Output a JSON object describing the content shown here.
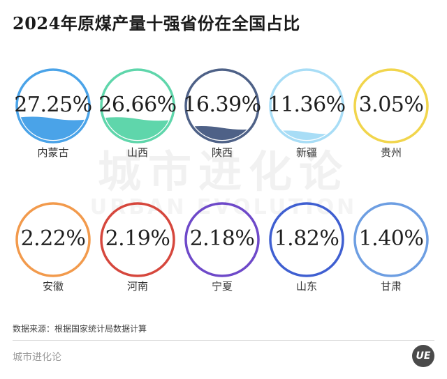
{
  "title": "2024年原煤产量十强省份在全国占比",
  "watermark": {
    "cn": "城市进化论",
    "en": "URBAN EVOLUTION"
  },
  "chart_data": {
    "type": "bubble-gauge",
    "title": "2024年原煤产量十强省份在全国占比",
    "unit": "%",
    "categories": [
      "内蒙古",
      "山西",
      "陕西",
      "新疆",
      "贵州",
      "安徽",
      "河南",
      "宁夏",
      "山东",
      "甘肃"
    ],
    "values": [
      27.25,
      26.66,
      16.39,
      11.36,
      3.05,
      2.22,
      2.19,
      2.18,
      1.82,
      1.4
    ],
    "labels": [
      "27.25%",
      "26.66%",
      "16.39%",
      "11.36%",
      "3.05%",
      "2.22%",
      "2.19%",
      "2.18%",
      "1.82%",
      "1.40%"
    ],
    "colors": [
      "#4aa3e8",
      "#5fd6ab",
      "#4e6187",
      "#a8ddf6",
      "#f1d54c",
      "#f29a4c",
      "#d6473d",
      "#6e49c9",
      "#3f5fd1",
      "#6d9ee2"
    ],
    "layout": {
      "rows": 2,
      "cols": 5
    }
  },
  "source": "数据来源：根据国家统计局数据计算",
  "footer": {
    "brand": "城市进化论",
    "logo": "UE"
  }
}
